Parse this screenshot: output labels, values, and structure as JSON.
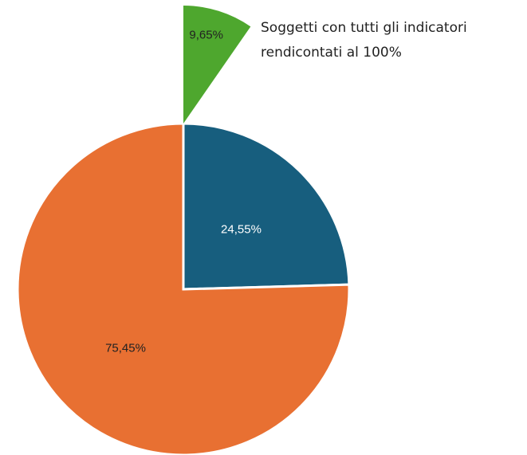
{
  "chart_data": {
    "type": "pie",
    "values": [
      24.55,
      75.45
    ],
    "value_labels": [
      "24,55%",
      "75,45%"
    ],
    "colors": [
      "#175e7e",
      "#e87032"
    ],
    "subset": {
      "value": 9.65,
      "label": "9,65%",
      "color": "#4ea72e",
      "annotation": [
        "Soggetti con tutti gli indicatori",
        "rendicontati al 100%"
      ]
    }
  }
}
